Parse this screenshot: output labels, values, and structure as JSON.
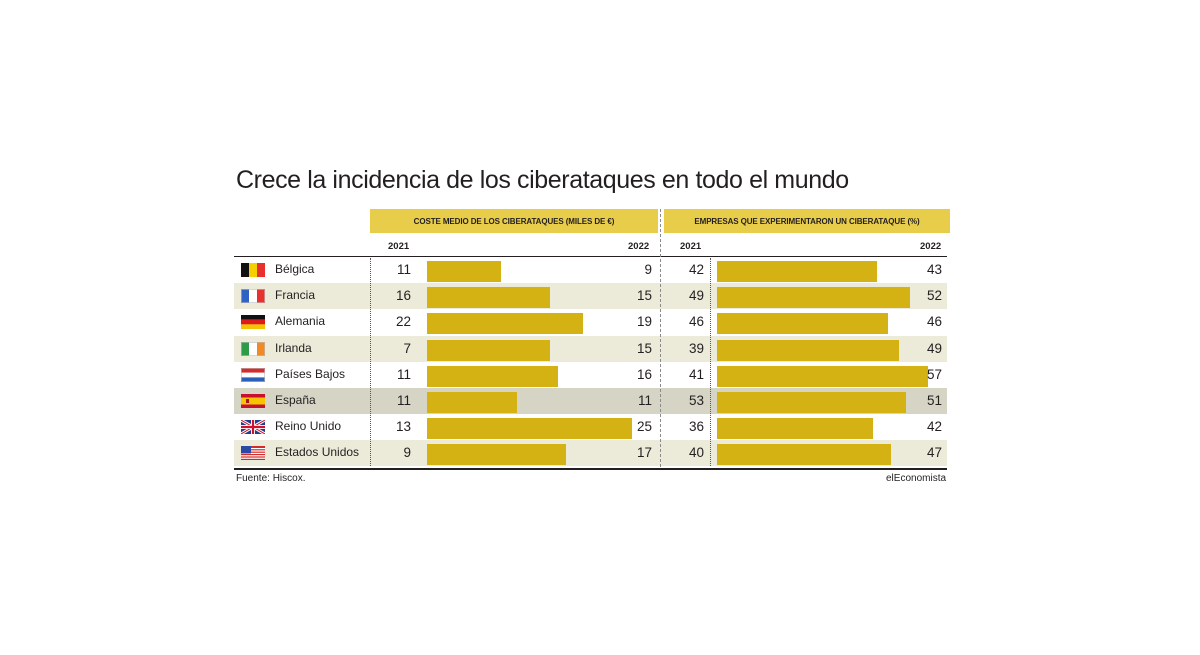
{
  "title": "Crece la incidencia de los ciberataques en todo el mundo",
  "chart_data": {
    "type": "bar",
    "title": "Crece la incidencia de los ciberataques en todo el mundo",
    "panels": [
      {
        "header": "COSTE MEDIO DE LOS CIBERATAQUES (MILES DE €)",
        "year_from": "2021",
        "year_to": "2022",
        "bar_scale_max": 30,
        "values_2021": [
          11,
          16,
          22,
          7,
          11,
          11,
          13,
          9
        ],
        "values_2022": [
          9,
          15,
          19,
          15,
          16,
          11,
          25,
          17
        ]
      },
      {
        "header": "EMPRESAS QUE EXPERIMENTARON UN CIBERATAQUE (%)",
        "year_from": "2021",
        "year_to": "2022",
        "bar_scale_max": 62,
        "values_2021": [
          42,
          49,
          46,
          39,
          41,
          53,
          36,
          40
        ],
        "values_2022": [
          43,
          52,
          46,
          49,
          57,
          51,
          42,
          47
        ]
      }
    ],
    "categories": [
      "Bélgica",
      "Francia",
      "Alemania",
      "Irlanda",
      "Países Bajos",
      "España",
      "Reino Unido",
      "Estados Unidos"
    ],
    "highlight": "España",
    "bars_represent": "2022"
  },
  "countries": [
    {
      "name": "Bélgica",
      "flag": "belgium-flag"
    },
    {
      "name": "Francia",
      "flag": "france-flag"
    },
    {
      "name": "Alemania",
      "flag": "germany-flag"
    },
    {
      "name": "Irlanda",
      "flag": "ireland-flag"
    },
    {
      "name": "Países Bajos",
      "flag": "netherlands-flag"
    },
    {
      "name": "España",
      "flag": "spain-flag"
    },
    {
      "name": "Reino Unido",
      "flag": "uk-flag"
    },
    {
      "name": "Estados Unidos",
      "flag": "usa-flag"
    }
  ],
  "footer": {
    "source": "Fuente: Hiscox.",
    "brand": "elEconomista"
  },
  "colors": {
    "header": "#e8cd4a",
    "bar": "#d4b214",
    "row_shade": "#ecead9",
    "row_highlight": "#d6d4c5"
  }
}
